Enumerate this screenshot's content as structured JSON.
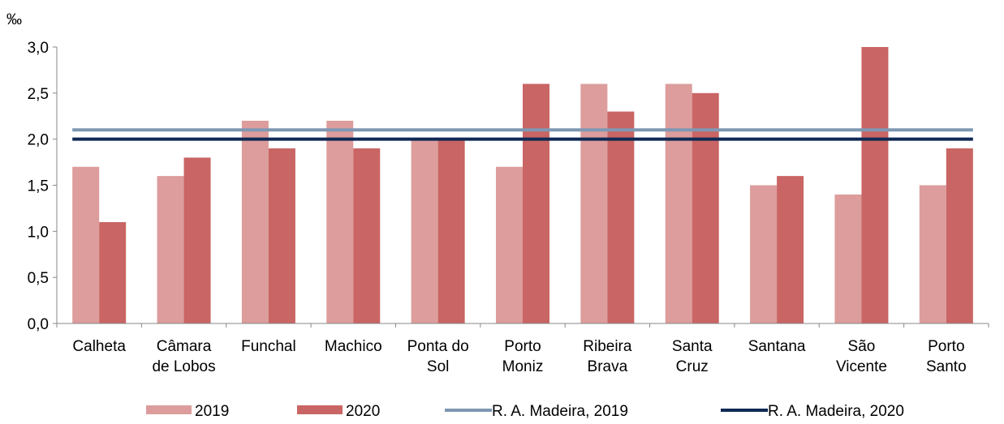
{
  "chart_data": {
    "type": "bar",
    "unit_label": "‰",
    "categories": [
      [
        "Calheta"
      ],
      [
        "Câmara",
        "de Lobos"
      ],
      [
        "Funchal"
      ],
      [
        "Machico"
      ],
      [
        "Ponta do",
        "Sol"
      ],
      [
        "Porto",
        "Moniz"
      ],
      [
        "Ribeira",
        "Brava"
      ],
      [
        "Santa",
        "Cruz"
      ],
      [
        "Santana"
      ],
      [
        "São",
        "Vicente"
      ],
      [
        "Porto",
        "Santo"
      ]
    ],
    "series": [
      {
        "name": "2019",
        "kind": "bar",
        "color": "#dc9d9c",
        "values": [
          1.7,
          1.6,
          2.2,
          2.2,
          2.0,
          1.7,
          2.6,
          2.6,
          1.5,
          1.4,
          1.5
        ]
      },
      {
        "name": "2020",
        "kind": "bar",
        "color": "#c96564",
        "values": [
          1.1,
          1.8,
          1.9,
          1.9,
          2.0,
          2.6,
          2.3,
          2.5,
          1.6,
          3.0,
          1.9
        ]
      },
      {
        "name": "R. A. Madeira, 2019",
        "kind": "line",
        "color": "#7f98b3",
        "value": 2.1
      },
      {
        "name": "R. A. Madeira, 2020",
        "kind": "line",
        "color": "#0f2a55",
        "value": 2.0
      }
    ],
    "ylim": [
      0,
      3.0
    ],
    "yticks": [
      "0,0",
      "0,5",
      "1,0",
      "1,5",
      "2,0",
      "2,5",
      "3,0"
    ],
    "grid": false,
    "legend_position": "bottom"
  }
}
